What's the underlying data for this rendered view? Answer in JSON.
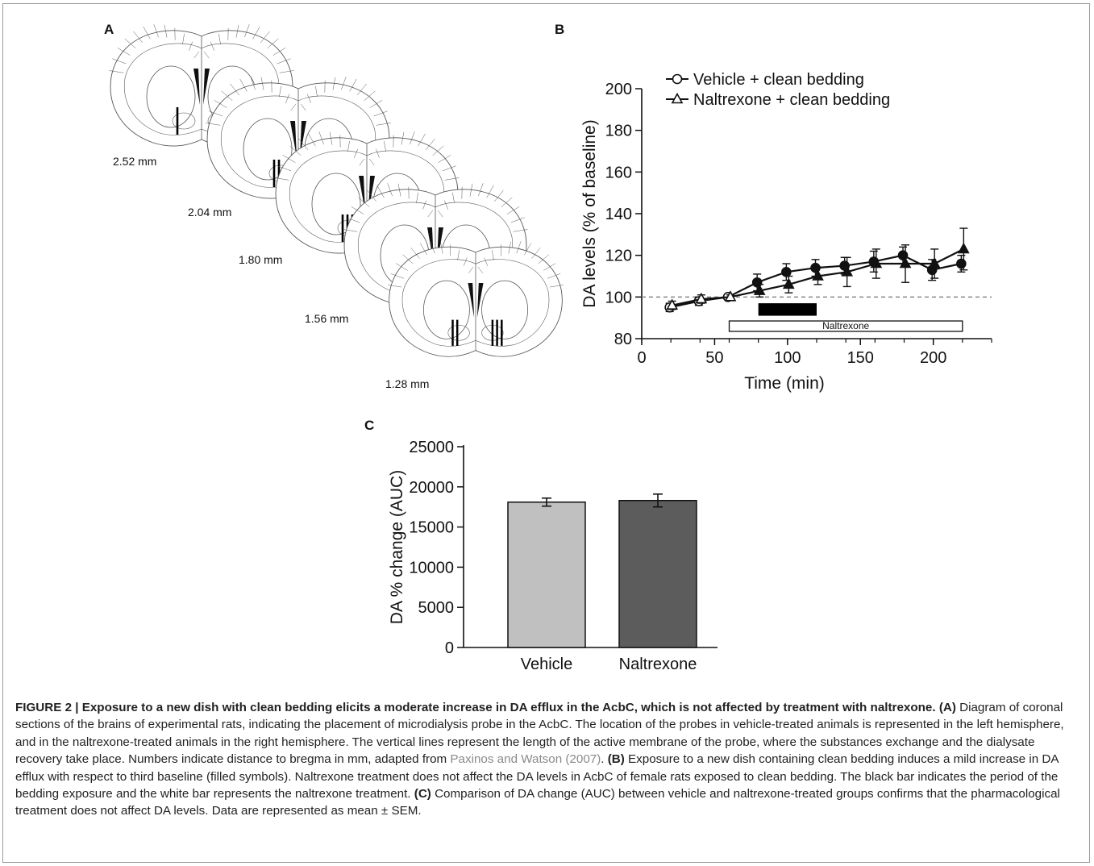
{
  "panels": {
    "a": "A",
    "b": "B",
    "c": "C"
  },
  "panel_a": {
    "section_labels": [
      "2.52 mm",
      "2.04 mm",
      "1.80 mm",
      "1.56 mm",
      "1.28 mm"
    ]
  },
  "chart_data": [
    {
      "type": "line",
      "panel": "B",
      "xlabel": "Time (min)",
      "ylabel": "DA levels (% of baseline)",
      "xlim": [
        0,
        240
      ],
      "ylim": [
        80,
        200
      ],
      "xticks": [
        "0",
        "50",
        "100",
        "150",
        "200"
      ],
      "yticks": [
        "80",
        "100",
        "120",
        "140",
        "160",
        "180",
        "200"
      ],
      "baseline": 100,
      "legend": [
        "Vehicle + clean bedding",
        "Naltrexone + clean bedding"
      ],
      "legend_position": "top-left",
      "treatment_bar_label": "Naltrexone",
      "bedding_exposure": [
        80,
        120
      ],
      "naltrexone_treatment": [
        60,
        220
      ],
      "series": [
        {
          "name": "Vehicle + clean bedding",
          "marker": "circle",
          "x": [
            20,
            40,
            60,
            80,
            100,
            120,
            140,
            160,
            180,
            200,
            220
          ],
          "values": [
            95,
            98,
            100,
            107,
            112,
            114,
            115,
            117,
            120,
            113,
            116
          ],
          "error": [
            2,
            2,
            1,
            4,
            4,
            4,
            4,
            5,
            4,
            5,
            4
          ]
        },
        {
          "name": "Naltrexone + clean bedding",
          "marker": "triangle",
          "x": [
            20,
            40,
            60,
            80,
            100,
            120,
            140,
            160,
            180,
            200,
            220
          ],
          "values": [
            96,
            99,
            100,
            103,
            106,
            110,
            112,
            116,
            116,
            116,
            123
          ],
          "error": [
            2,
            2,
            1,
            3,
            4,
            4,
            7,
            7,
            9,
            7,
            10
          ]
        }
      ]
    },
    {
      "type": "bar",
      "panel": "C",
      "categories": [
        "Vehicle",
        "Naltrexone"
      ],
      "values": [
        18100,
        18300
      ],
      "errors": [
        500,
        800
      ],
      "colors": [
        "#c0c0c0",
        "#5c5c5c"
      ],
      "ylabel": "DA % change (AUC)",
      "ylim": [
        0,
        25000
      ],
      "yticks": [
        "0",
        "5000",
        "10000",
        "15000",
        "20000",
        "25000"
      ]
    }
  ],
  "caption": {
    "title": "FIGURE 2 | Exposure to a new dish with clean bedding elicits a moderate increase in DA efflux in the AcbC, which is not affected by treatment with naltrexone.",
    "a_label": "(A)",
    "a_text": " Diagram of coronal sections of the brains of experimental rats, indicating the placement of microdialysis probe in the AcbC. The location of the probes in vehicle-treated animals is represented in the left hemisphere, and in the naltrexone-treated animals in the right hemisphere. The vertical lines represent the length of the active membrane of the probe, where the substances exchange and the dialysate recovery take place. Numbers indicate distance to bregma in mm, adapted from ",
    "a_ref": "Paxinos and Watson (2007)",
    "a_end": ". ",
    "b_label": "(B)",
    "b_text": " Exposure to a new dish containing clean bedding induces a mild increase in DA efflux with respect to third baseline (filled symbols). Naltrexone treatment does not affect the DA levels in AcbC of female rats exposed to clean bedding. The black bar indicates the period of the bedding exposure and the white bar represents the naltrexone treatment. ",
    "c_label": "(C)",
    "c_text": " Comparison of DA change (AUC) between vehicle and naltrexone-treated groups confirms that the pharmacological treatment does not affect DA levels. Data are represented as mean ± SEM."
  }
}
